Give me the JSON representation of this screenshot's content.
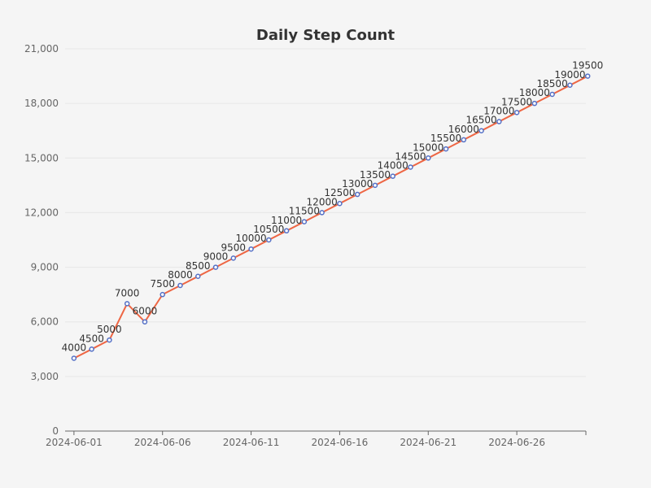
{
  "chart_data": {
    "type": "line",
    "title": "Daily Step Count",
    "xlabel": "",
    "ylabel": "",
    "x": [
      "2024-06-01",
      "2024-06-02",
      "2024-06-03",
      "2024-06-04",
      "2024-06-05",
      "2024-06-06",
      "2024-06-07",
      "2024-06-08",
      "2024-06-09",
      "2024-06-10",
      "2024-06-11",
      "2024-06-12",
      "2024-06-13",
      "2024-06-14",
      "2024-06-15",
      "2024-06-16",
      "2024-06-17",
      "2024-06-18",
      "2024-06-19",
      "2024-06-20",
      "2024-06-21",
      "2024-06-22",
      "2024-06-23",
      "2024-06-24",
      "2024-06-25",
      "2024-06-26",
      "2024-06-27",
      "2024-06-28",
      "2024-06-29",
      "2024-06-30"
    ],
    "x_ticks": [
      "2024-06-01",
      "2024-06-06",
      "2024-06-11",
      "2024-06-16",
      "2024-06-21",
      "2024-06-26"
    ],
    "series": [
      {
        "values": [
          4000,
          4500,
          5000,
          7000,
          6000,
          7500,
          8000,
          8500,
          9000,
          9500,
          10000,
          10500,
          11000,
          11500,
          12000,
          12500,
          13000,
          13500,
          14000,
          14500,
          15000,
          15500,
          16000,
          16500,
          17000,
          17500,
          18000,
          18500,
          19000,
          19500
        ]
      }
    ],
    "ylim": [
      0,
      21000
    ],
    "y_ticks": [
      0,
      3000,
      6000,
      9000,
      12000,
      15000,
      18000,
      21000
    ],
    "y_tick_labels": [
      "0",
      "3,000",
      "6,000",
      "9,000",
      "12,000",
      "15,000",
      "18,000",
      "21,000"
    ],
    "grid": true,
    "legend": "none",
    "colors": {
      "line": "#ee6644",
      "point": "#5470c6",
      "background": "#f5f5f5"
    }
  }
}
